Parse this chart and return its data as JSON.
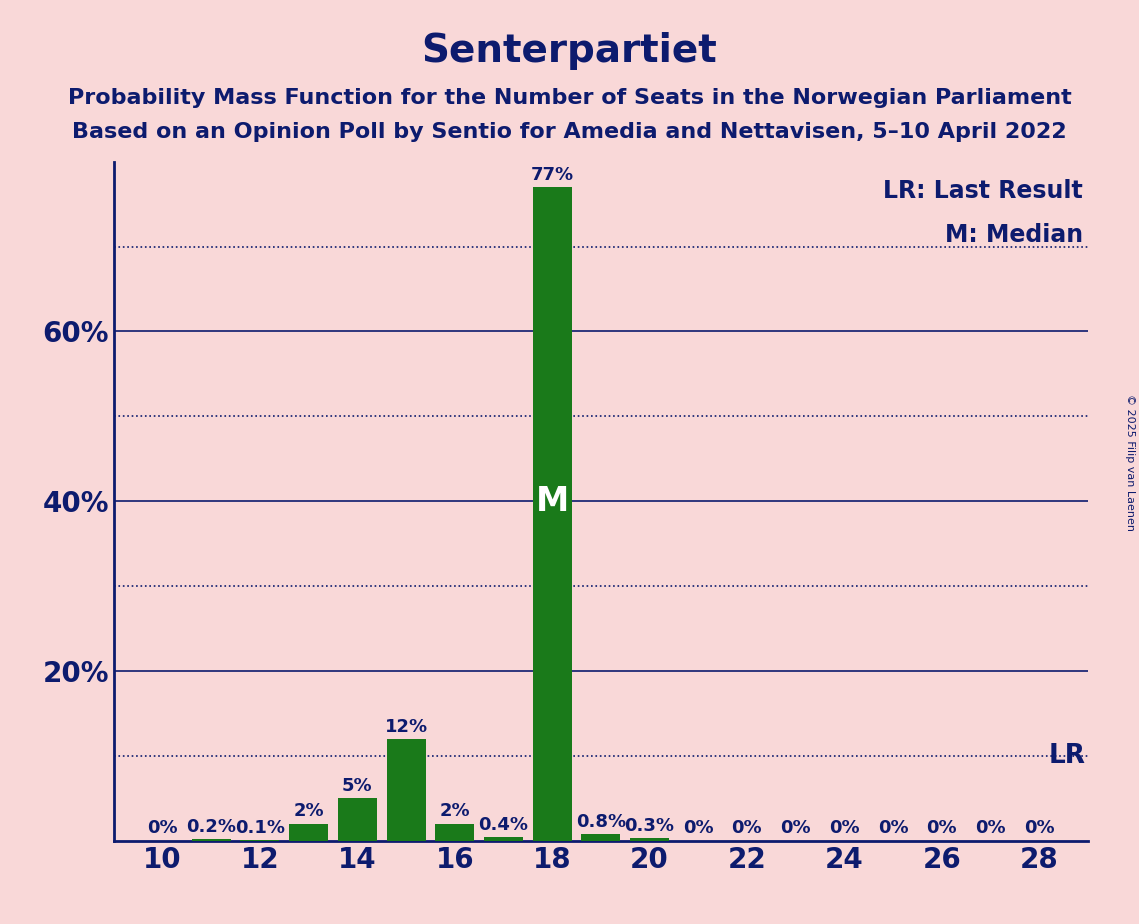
{
  "title": "Senterpartiet",
  "subtitle1": "Probability Mass Function for the Number of Seats in the Norwegian Parliament",
  "subtitle2": "Based on an Opinion Poll by Sentio for Amedia and Nettavisen, 5–10 April 2022",
  "copyright": "© 2025 Filip van Laenen",
  "legend_lr": "LR: Last Result",
  "legend_m": "M: Median",
  "seats": [
    10,
    11,
    12,
    13,
    14,
    15,
    16,
    17,
    18,
    19,
    20,
    21,
    22,
    23,
    24,
    25,
    26,
    27,
    28
  ],
  "probabilities": [
    0.0,
    0.2,
    0.1,
    2.0,
    5.0,
    12.0,
    2.0,
    0.4,
    77.0,
    0.8,
    0.3,
    0.0,
    0.0,
    0.0,
    0.0,
    0.0,
    0.0,
    0.0,
    0.0
  ],
  "labels": [
    "0%",
    "0.2%",
    "0.1%",
    "2%",
    "5%",
    "12%",
    "2%",
    "0.4%",
    "77%",
    "0.8%",
    "0.3%",
    "0%",
    "0%",
    "0%",
    "0%",
    "0%",
    "0%",
    "0%",
    "0%"
  ],
  "bar_color": "#1a7a1a",
  "median_seat": 18,
  "median_label": "M",
  "lr_y": 10.0,
  "lr_label": "LR",
  "background_color": "#f9d8d8",
  "title_color": "#0d1b6e",
  "bar_text_color": "#0d1b6e",
  "axis_color": "#0d1b6e",
  "grid_color": "#0d1b6e",
  "ylim": [
    0,
    80
  ],
  "xlim": [
    9,
    29
  ],
  "xticks": [
    10,
    12,
    14,
    16,
    18,
    20,
    22,
    24,
    26,
    28
  ],
  "solid_gridlines": [
    20,
    40,
    60
  ],
  "dotted_gridlines": [
    10,
    30,
    50,
    70
  ],
  "ytick_positions": [
    20,
    40,
    60
  ],
  "ytick_labels": [
    "20%",
    "40%",
    "60%"
  ],
  "title_fontsize": 28,
  "subtitle_fontsize": 16,
  "tick_fontsize": 20,
  "bar_label_fontsize": 13,
  "legend_fontsize": 17,
  "median_fontsize": 24,
  "lr_fontsize": 19
}
